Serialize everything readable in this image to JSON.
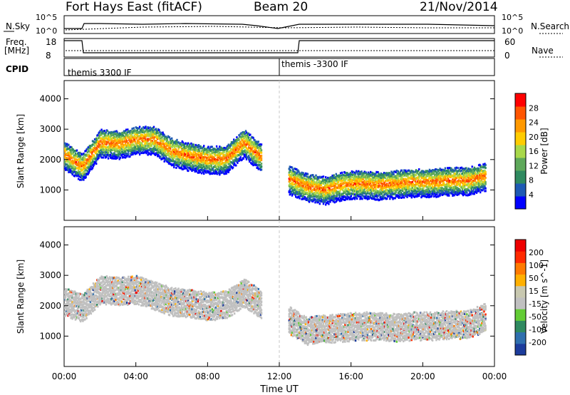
{
  "header": {
    "title": "Fort Hays East (fitACF)",
    "beam": "Beam 20",
    "date": "21/Nov/2014"
  },
  "top_panels": {
    "nsky_label": "N.Sky",
    "nsearch_label": "N.Search",
    "nsky_ticks": [
      "10^5",
      "10^0"
    ],
    "nsearch_ticks": [
      "10^5",
      "10^0"
    ],
    "freq_label": "Freq.",
    "freq_unit": "[MHz]",
    "freq_ticks": [
      "18",
      "8"
    ],
    "nave_label": "Nave",
    "nave_ticks": [
      "60",
      "0"
    ],
    "cpid_label": "CPID",
    "cpid_segments": [
      "themis 3300 IF",
      "themis -3300 IF"
    ]
  },
  "colors": {
    "power_scale": [
      "#0000ff",
      "#1e5ab4",
      "#2f8a60",
      "#5ea85a",
      "#a8d84a",
      "#ffcc00",
      "#ff9900",
      "#ff5500",
      "#ff0000"
    ],
    "velocity_scale": [
      "#1c3c9c",
      "#2f6fae",
      "#2f8a60",
      "#63cc35",
      "#c0c0c0",
      "#c8c8b0",
      "#ffb000",
      "#ff7a00",
      "#ff2a00",
      "#ee0000"
    ]
  },
  "chart_data": [
    {
      "type": "heatmap",
      "title": "Power",
      "xlabel": "Time UT",
      "ylabel": "Slant Range [km]",
      "x_ticks": [
        "00:00",
        "04:00",
        "08:00",
        "12:00",
        "16:00",
        "20:00",
        "00:00"
      ],
      "y_ticks": [
        1000,
        2000,
        3000,
        4000
      ],
      "ylim": [
        0,
        4600
      ],
      "colorbar_label": "Power [dB]",
      "colorbar_ticks": [
        4,
        8,
        12,
        16,
        20,
        24,
        28
      ],
      "bands": [
        {
          "x": [
            0.0,
            1.0,
            2.0,
            3.0,
            4.0,
            5.0,
            6.0,
            7.0,
            8.0,
            9.0,
            10.0,
            11.0
          ],
          "y": [
            2200,
            1800,
            2600,
            2550,
            2700,
            2700,
            2300,
            2150,
            2050,
            2050,
            2600,
            2100
          ],
          "level": 24
        },
        {
          "x": [
            12.5,
            13.5,
            14.5,
            15.5,
            16.5,
            17.5,
            18.5,
            19.5,
            20.5,
            21.5,
            22.5,
            23.5
          ],
          "y": [
            1400,
            1150,
            1050,
            1200,
            1250,
            1200,
            1250,
            1300,
            1300,
            1350,
            1350,
            1500
          ],
          "level": 28
        }
      ]
    },
    {
      "type": "heatmap",
      "title": "Velocity",
      "xlabel": "Time UT",
      "ylabel": "Slant Range [km]",
      "x_ticks": [
        "00:00",
        "04:00",
        "08:00",
        "12:00",
        "16:00",
        "20:00",
        "00:00"
      ],
      "y_ticks": [
        1000,
        2000,
        3000,
        4000
      ],
      "ylim": [
        0,
        4600
      ],
      "colorbar_label": "Velocity [m s^-1]",
      "colorbar_ticks": [
        200,
        100,
        50,
        15,
        -15,
        -50,
        -100,
        -200
      ],
      "bands": [
        {
          "x": [
            0.0,
            1.0,
            2.0,
            3.0,
            4.0,
            5.0,
            6.0,
            7.0,
            8.0,
            9.0,
            10.0,
            11.0
          ],
          "y": [
            2200,
            2000,
            2600,
            2550,
            2600,
            2400,
            2200,
            2150,
            2050,
            2100,
            2500,
            2100
          ],
          "level": 0
        },
        {
          "x": [
            12.5,
            13.5,
            14.5,
            15.5,
            16.5,
            17.5,
            18.5,
            19.5,
            20.5,
            21.5,
            22.5,
            23.5
          ],
          "y": [
            1600,
            1250,
            1300,
            1350,
            1400,
            1400,
            1350,
            1400,
            1400,
            1450,
            1450,
            1700
          ],
          "level": 0
        }
      ]
    }
  ],
  "xaxis": {
    "label": "Time UT",
    "ticks": [
      "00:00",
      "04:00",
      "08:00",
      "12:00",
      "16:00",
      "20:00",
      "00:00"
    ]
  }
}
